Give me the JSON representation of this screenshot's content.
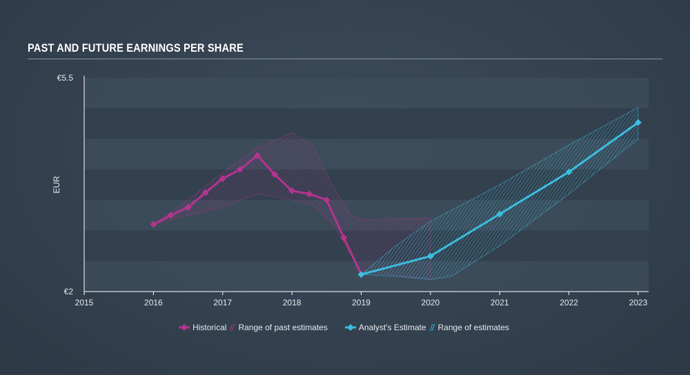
{
  "title": "PAST AND FUTURE EARNINGS PER SHARE",
  "legend": {
    "historical": "Historical",
    "past_range": "Range of past estimates",
    "analyst": "Analyst's Estimate",
    "future_range": "Range of estimates"
  },
  "colors": {
    "historical": "#b5348f",
    "estimate": "#3cbde0",
    "axis": "#ffffff",
    "text": "#e6ebf0"
  },
  "chart_data": {
    "type": "line",
    "title": "PAST AND FUTURE EARNINGS PER SHARE",
    "xlabel": "",
    "ylabel": "EUR",
    "xlim": [
      2015,
      2023.15
    ],
    "ylim": [
      2,
      5.5
    ],
    "y_tick_labels": [
      {
        "value": 5.5,
        "label": "€5.5"
      },
      {
        "value": 2,
        "label": "€2"
      }
    ],
    "x_ticks": [
      2015,
      2016,
      2017,
      2018,
      2019,
      2020,
      2021,
      2022,
      2023
    ],
    "series": [
      {
        "name": "Historical",
        "points": [
          [
            2016.0,
            3.1
          ],
          [
            2016.25,
            3.25
          ],
          [
            2016.5,
            3.38
          ],
          [
            2016.75,
            3.62
          ],
          [
            2017.0,
            3.85
          ],
          [
            2017.25,
            4.0
          ],
          [
            2017.5,
            4.23
          ],
          [
            2017.75,
            3.92
          ],
          [
            2018.0,
            3.65
          ],
          [
            2018.25,
            3.6
          ],
          [
            2018.5,
            3.5
          ],
          [
            2018.75,
            2.88
          ],
          [
            2019.0,
            2.28
          ]
        ]
      },
      {
        "name": "Analyst's Estimate",
        "points": [
          [
            2019.0,
            2.28
          ],
          [
            2020.0,
            2.58
          ],
          [
            2021.0,
            3.27
          ],
          [
            2022.0,
            3.96
          ],
          [
            2023.0,
            4.77
          ]
        ]
      }
    ],
    "past_range": {
      "upper": [
        [
          2016.0,
          3.1
        ],
        [
          2016.5,
          3.5
        ],
        [
          2017.0,
          3.95
        ],
        [
          2017.5,
          4.35
        ],
        [
          2018.0,
          4.6
        ],
        [
          2018.3,
          4.4
        ],
        [
          2018.6,
          3.7
        ],
        [
          2018.85,
          3.25
        ],
        [
          2019.0,
          3.18
        ],
        [
          2020.0,
          3.2
        ]
      ],
      "lower": [
        [
          2016.0,
          3.1
        ],
        [
          2016.5,
          3.25
        ],
        [
          2017.0,
          3.38
        ],
        [
          2017.5,
          3.6
        ],
        [
          2018.0,
          3.5
        ],
        [
          2018.3,
          3.42
        ],
        [
          2018.6,
          3.1
        ],
        [
          2018.85,
          2.6
        ],
        [
          2019.0,
          2.35
        ],
        [
          2020.0,
          2.2
        ]
      ]
    },
    "future_range": {
      "upper": [
        [
          2019.0,
          2.28
        ],
        [
          2019.5,
          2.75
        ],
        [
          2020.0,
          3.15
        ],
        [
          2021.0,
          3.75
        ],
        [
          2022.0,
          4.4
        ],
        [
          2023.0,
          5.02
        ]
      ],
      "lower": [
        [
          2019.0,
          2.28
        ],
        [
          2019.5,
          2.25
        ],
        [
          2020.0,
          2.2
        ],
        [
          2020.3,
          2.25
        ],
        [
          2021.0,
          2.75
        ],
        [
          2022.0,
          3.6
        ],
        [
          2023.0,
          4.5
        ]
      ]
    }
  }
}
